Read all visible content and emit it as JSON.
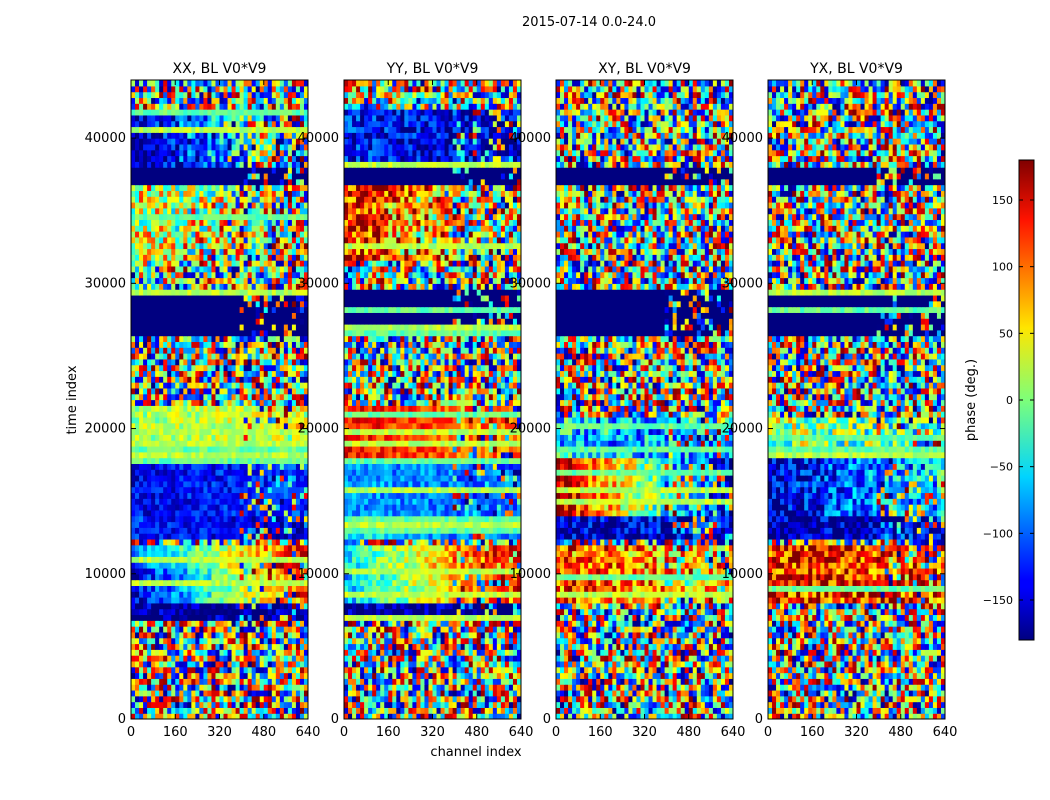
{
  "figure": {
    "suptitle": "2015-07-14 0.0-24.0"
  },
  "chart_data": {
    "type": "heatmap",
    "xlabel": "channel index",
    "ylabel": "time index",
    "xlim": [
      0,
      640
    ],
    "ylim": [
      0,
      44000
    ],
    "x_ticks": [
      0,
      160,
      320,
      480,
      640
    ],
    "y_ticks": [
      0,
      10000,
      20000,
      30000,
      40000
    ],
    "x_tick_labels": [
      "0",
      "160",
      "320",
      "480",
      "640"
    ],
    "y_tick_labels": [
      "0",
      "10000",
      "20000",
      "30000",
      "40000"
    ],
    "panels": [
      {
        "title": "XX, BL V0*V9"
      },
      {
        "title": "YY, BL V0*V9"
      },
      {
        "title": "XY, BL V0*V9"
      },
      {
        "title": "YX, BL V0*V9"
      }
    ],
    "colorbar": {
      "label": "phase (deg.)",
      "colormap": "jet",
      "vmin": -180,
      "vmax": 180,
      "ticks": [
        -150,
        -100,
        -50,
        0,
        50,
        100,
        150
      ],
      "tick_labels": [
        "−150",
        "−100",
        "−50",
        "0",
        "50",
        "100",
        "150"
      ]
    }
  }
}
